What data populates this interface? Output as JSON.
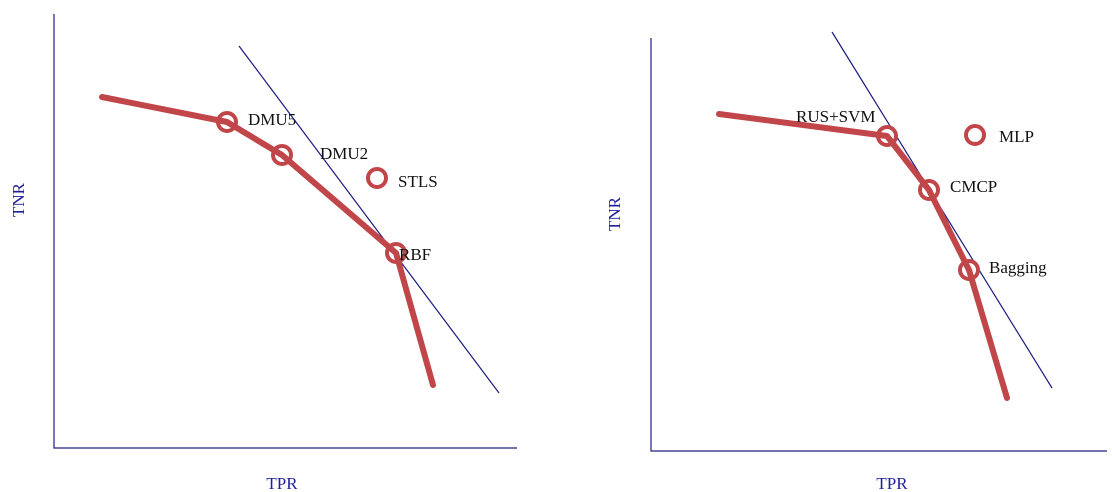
{
  "colors": {
    "frontier": "#c0464a",
    "tangent": "#1a1a80",
    "axis": "#1f1f7a",
    "axis_label": "#1f1f9a",
    "label": "#111111"
  },
  "panels": [
    {
      "x_label": "TPR",
      "y_label": "TNR",
      "points": [
        {
          "label": "DMU5"
        },
        {
          "label": "DMU2"
        },
        {
          "label": "STLS"
        },
        {
          "label": "RBF"
        }
      ]
    },
    {
      "x_label": "TPR",
      "y_label": "TNR",
      "points": [
        {
          "label": "RUS+SVM"
        },
        {
          "label": "MLP"
        },
        {
          "label": "CMCP"
        },
        {
          "label": "Bagging"
        }
      ]
    }
  ]
}
